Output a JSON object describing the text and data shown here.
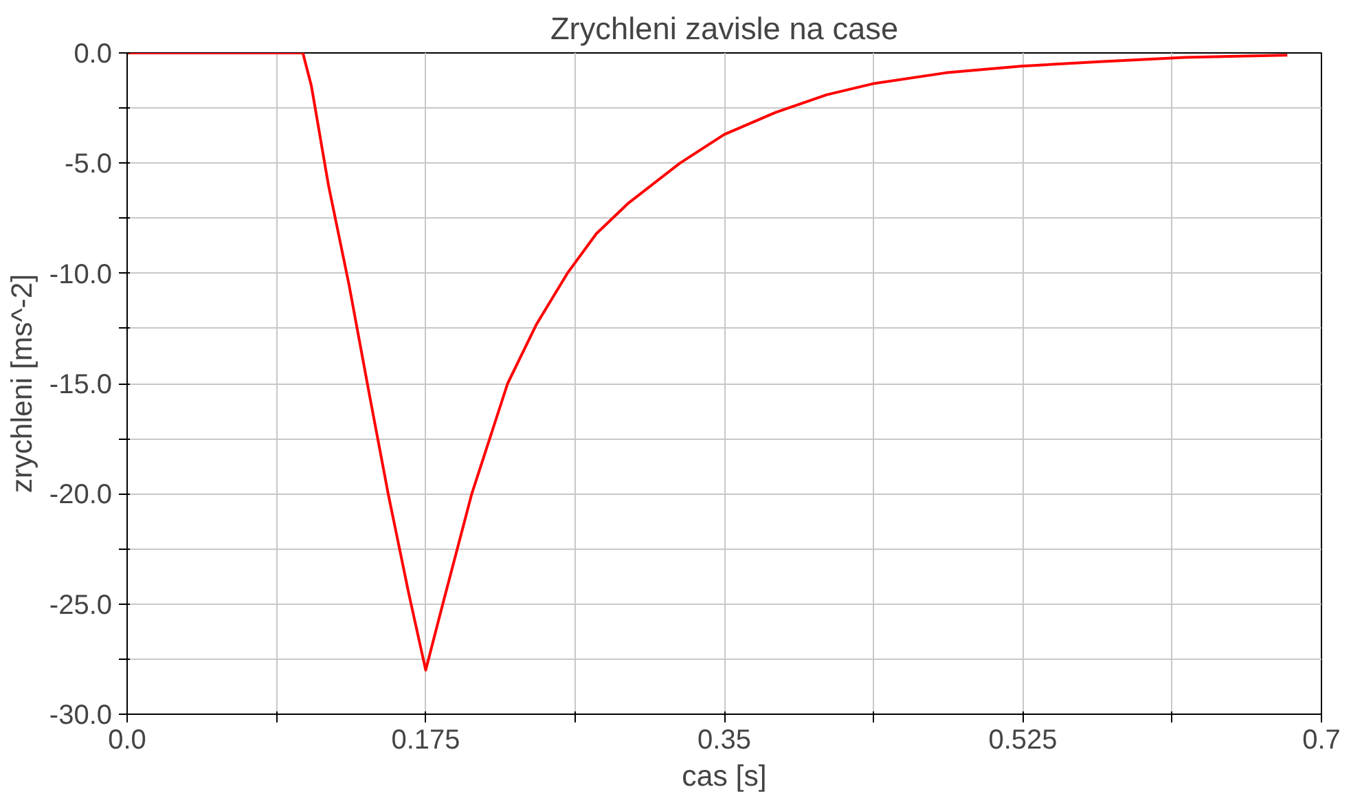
{
  "chart_data": {
    "type": "line",
    "title": "Zrychleni zavisle na case",
    "xlabel": "cas [s]",
    "ylabel": "zrychleni [ms^-2]",
    "xlim": [
      0.0,
      0.7
    ],
    "ylim": [
      -30.0,
      0.0
    ],
    "xticks": [
      {
        "value": 0.0,
        "label": "0.0"
      },
      {
        "value": 0.0875,
        "label": null
      },
      0.175,
      {
        "value": 0.2625,
        "label": null
      },
      0.35,
      {
        "value": 0.4375,
        "label": null
      },
      0.525,
      {
        "value": 0.6125,
        "label": null
      },
      0.7
    ],
    "yticks": [
      {
        "value": -30.0,
        "label": "-30.0"
      },
      {
        "value": -27.5,
        "label": null
      },
      {
        "value": -25.0,
        "label": "-25.0"
      },
      {
        "value": -22.5,
        "label": null
      },
      {
        "value": -20.0,
        "label": "-20.0"
      },
      {
        "value": -17.5,
        "label": null
      },
      {
        "value": -15.0,
        "label": "-15.0"
      },
      {
        "value": -12.5,
        "label": null
      },
      {
        "value": -10.0,
        "label": "-10.0"
      },
      {
        "value": -7.5,
        "label": null
      },
      {
        "value": -5.0,
        "label": "-5.0"
      },
      {
        "value": -2.5,
        "label": null
      },
      {
        "value": 0.0,
        "label": "0.0"
      }
    ],
    "grid": true,
    "marker": "none",
    "line_style": "solid",
    "series": [
      {
        "color": "#ff0000",
        "x": [
          0.0,
          0.05,
          0.1,
          0.103,
          0.108,
          0.118,
          0.13,
          0.142,
          0.153,
          0.165,
          0.175,
          0.185,
          0.202,
          0.223,
          0.24,
          0.258,
          0.275,
          0.294,
          0.324,
          0.35,
          0.38,
          0.41,
          0.437,
          0.48,
          0.524,
          0.57,
          0.62,
          0.68
        ],
        "values": [
          0.0,
          0.0,
          0.0,
          0.0,
          -1.5,
          -6.0,
          -10.5,
          -15.5,
          -20.0,
          -24.5,
          -28.0,
          -25.0,
          -20.0,
          -15.0,
          -12.3,
          -10.0,
          -8.2,
          -6.8,
          -5.0,
          -3.7,
          -2.7,
          -1.9,
          -1.4,
          -0.9,
          -0.6,
          -0.4,
          -0.2,
          -0.1
        ]
      }
    ]
  }
}
